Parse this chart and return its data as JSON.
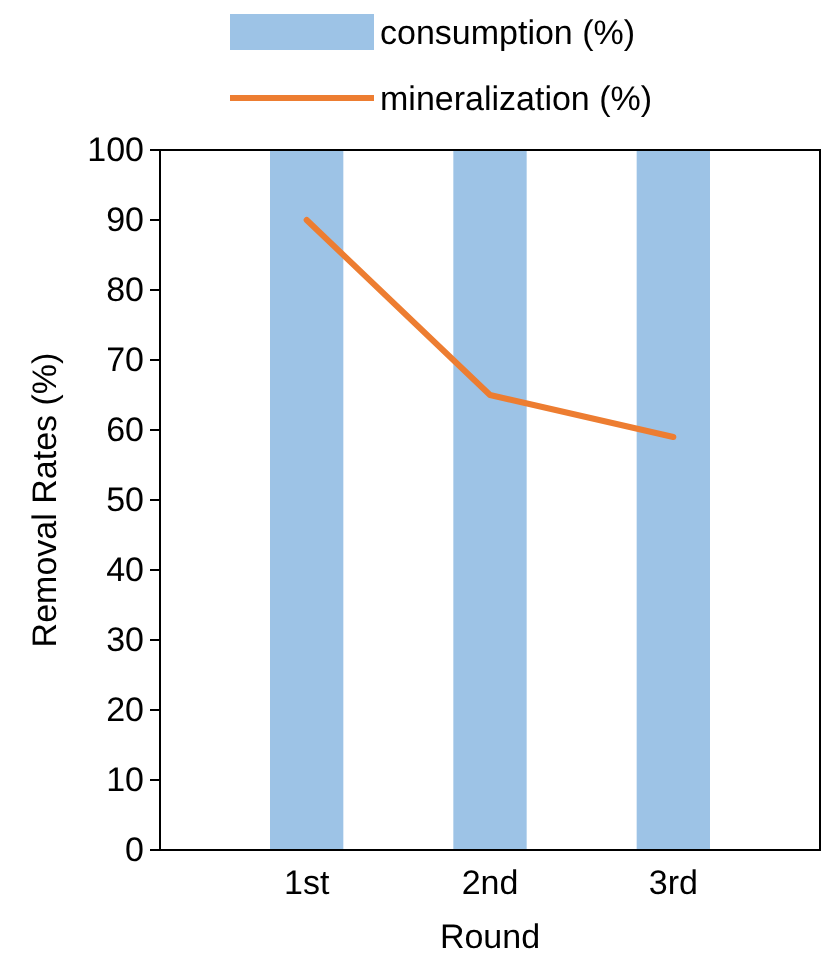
{
  "chart_data": {
    "type": "bar",
    "xlabel": "Round",
    "ylabel": "Removal Rates (%)",
    "categories": [
      "1st",
      "2nd",
      "3rd"
    ],
    "series": [
      {
        "name": "consumption (%)",
        "color": "#9dc3e6",
        "values": [
          100,
          100,
          100
        ]
      },
      {
        "name": "mineralization (%)",
        "type": "line",
        "color": "#ed7d31",
        "values": [
          90,
          65,
          59
        ]
      }
    ],
    "ylim": [
      0,
      100
    ],
    "yticks": [
      0,
      10,
      20,
      30,
      40,
      50,
      60,
      70,
      80,
      90,
      100
    ],
    "grid": false,
    "legend": "top",
    "marker": "none",
    "line_style": "solid"
  }
}
